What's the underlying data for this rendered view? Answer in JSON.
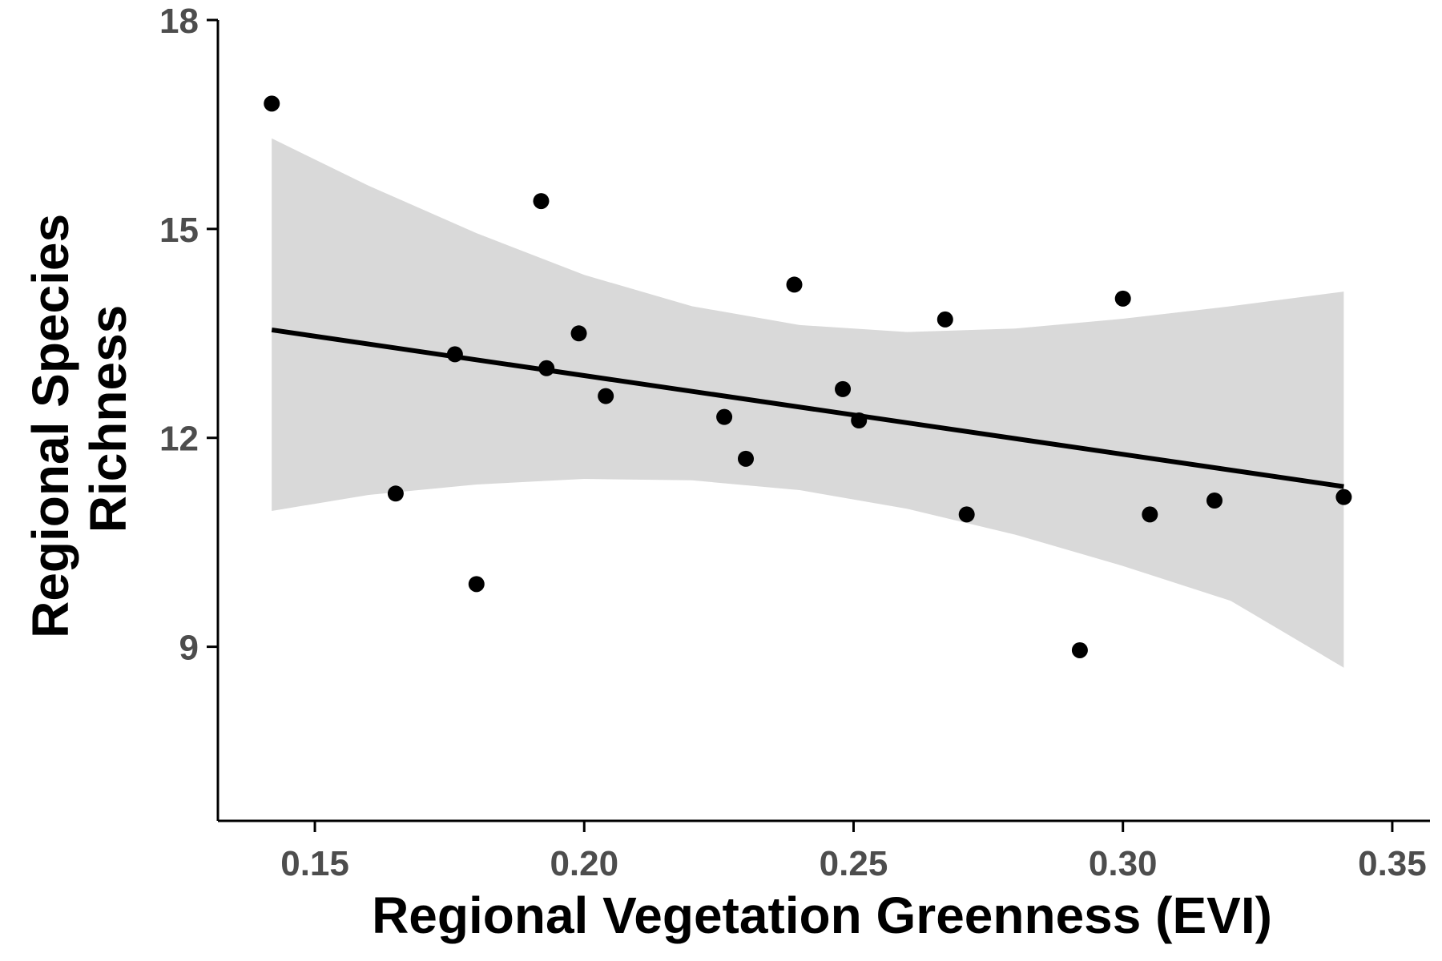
{
  "chart_data": {
    "type": "scatter",
    "xlabel": "Regional Vegetation Greenness (EVI)",
    "ylabel_lines": [
      "Regional Species",
      "Richness"
    ],
    "xlim": [
      0.132,
      0.357
    ],
    "ylim": [
      6.5,
      18.0
    ],
    "x_ticks": [
      0.15,
      0.2,
      0.25,
      0.3,
      0.35
    ],
    "x_tick_labels": [
      "0.15",
      "0.20",
      "0.25",
      "0.30",
      "0.35"
    ],
    "y_ticks": [
      9,
      12,
      15,
      18
    ],
    "y_tick_labels": [
      "9",
      "12",
      "15",
      "18"
    ],
    "grid": false,
    "colors": {
      "points": "#000000",
      "fit_line": "#000000",
      "ci_band": "#d9d9d9",
      "tick_text": "#4d4d4d",
      "axis": "#000000"
    },
    "points": [
      {
        "x": 0.142,
        "y": 16.8
      },
      {
        "x": 0.165,
        "y": 11.2
      },
      {
        "x": 0.176,
        "y": 13.2
      },
      {
        "x": 0.18,
        "y": 9.9
      },
      {
        "x": 0.192,
        "y": 15.4
      },
      {
        "x": 0.193,
        "y": 13.0
      },
      {
        "x": 0.199,
        "y": 13.5
      },
      {
        "x": 0.204,
        "y": 12.6
      },
      {
        "x": 0.226,
        "y": 12.3
      },
      {
        "x": 0.23,
        "y": 11.7
      },
      {
        "x": 0.239,
        "y": 14.2
      },
      {
        "x": 0.248,
        "y": 12.7
      },
      {
        "x": 0.251,
        "y": 12.25
      },
      {
        "x": 0.267,
        "y": 13.7
      },
      {
        "x": 0.271,
        "y": 10.9
      },
      {
        "x": 0.292,
        "y": 8.95
      },
      {
        "x": 0.3,
        "y": 14.0
      },
      {
        "x": 0.305,
        "y": 10.9
      },
      {
        "x": 0.317,
        "y": 11.1
      },
      {
        "x": 0.341,
        "y": 11.15
      }
    ],
    "fit_line": [
      {
        "x": 0.142,
        "y": 13.55
      },
      {
        "x": 0.341,
        "y": 11.3
      }
    ],
    "ci_band": {
      "x": [
        0.142,
        0.16,
        0.18,
        0.2,
        0.22,
        0.24,
        0.26,
        0.28,
        0.3,
        0.32,
        0.341
      ],
      "upper": [
        16.3,
        15.62,
        14.94,
        14.34,
        13.89,
        13.62,
        13.52,
        13.57,
        13.71,
        13.89,
        14.1
      ],
      "lower": [
        10.95,
        11.18,
        11.33,
        11.41,
        11.39,
        11.25,
        10.98,
        10.61,
        10.16,
        9.66,
        8.7
      ]
    }
  }
}
